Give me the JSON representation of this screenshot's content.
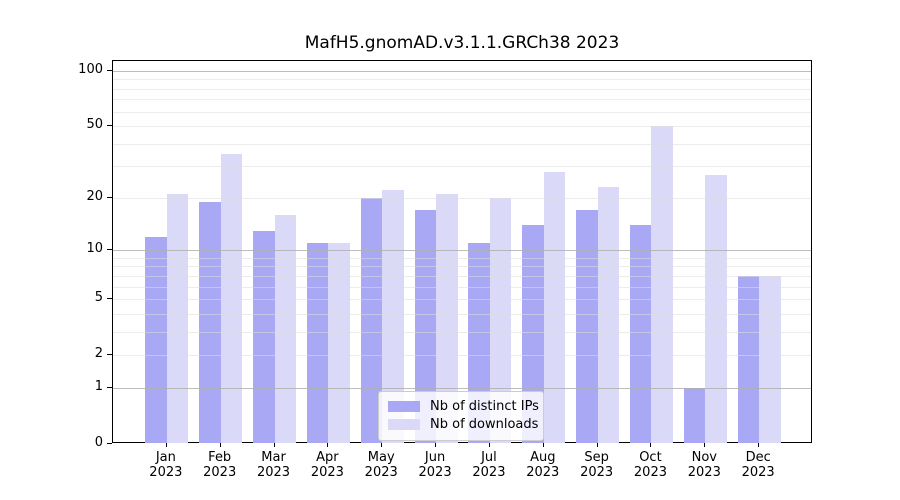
{
  "title": "MafH5.gnomAD.v3.1.1.GRCh38 2023",
  "chart_data": {
    "type": "bar",
    "title": "MafH5.gnomAD.v3.1.1.GRCh38 2023",
    "categories": [
      "Jan 2023",
      "Feb 2023",
      "Mar 2023",
      "Apr 2023",
      "May 2023",
      "Jun 2023",
      "Jul 2023",
      "Aug 2023",
      "Sep 2023",
      "Oct 2023",
      "Nov 2023",
      "Dec 2023"
    ],
    "x_tick_labels": [
      {
        "line1": "Jan",
        "line2": "2023"
      },
      {
        "line1": "Feb",
        "line2": "2023"
      },
      {
        "line1": "Mar",
        "line2": "2023"
      },
      {
        "line1": "Apr",
        "line2": "2023"
      },
      {
        "line1": "May",
        "line2": "2023"
      },
      {
        "line1": "Jun",
        "line2": "2023"
      },
      {
        "line1": "Jul",
        "line2": "2023"
      },
      {
        "line1": "Aug",
        "line2": "2023"
      },
      {
        "line1": "Sep",
        "line2": "2023"
      },
      {
        "line1": "Oct",
        "line2": "2023"
      },
      {
        "line1": "Nov",
        "line2": "2023"
      },
      {
        "line1": "Dec",
        "line2": "2023"
      }
    ],
    "series": [
      {
        "name": "Nb of distinct IPs",
        "color": "#a8a8f5",
        "values": [
          12,
          19,
          13,
          11,
          20,
          17,
          11,
          14,
          17,
          14,
          1,
          7
        ]
      },
      {
        "name": "Nb of downloads",
        "color": "#dadaf8",
        "values": [
          21,
          35,
          16,
          11,
          22,
          21,
          20,
          28,
          23,
          50,
          27,
          7
        ]
      }
    ],
    "y_axis": {
      "scale": "log1p",
      "ylim": [
        0,
        113
      ],
      "tick_values": [
        0,
        1,
        2,
        5,
        10,
        20,
        50,
        100
      ],
      "tick_labels": [
        "0",
        "1",
        "2",
        "5",
        "10",
        "20",
        "50",
        "100"
      ],
      "major_grid_values": [
        1,
        10,
        100
      ],
      "minor_grid_values": [
        2,
        3,
        4,
        5,
        6,
        7,
        8,
        9,
        20,
        30,
        40,
        50,
        60,
        70,
        80,
        90
      ],
      "grid": "on"
    },
    "legend": {
      "position": "lower center",
      "entries": [
        {
          "label": "Nb of distinct IPs",
          "color": "#a8a8f5"
        },
        {
          "label": "Nb of downloads",
          "color": "#dadaf8"
        }
      ]
    },
    "colors": {
      "bar_dark": "#a8a8f5",
      "bar_light": "#dadaf8",
      "major_grid": "#b0b0b0",
      "minor_grid": "#dcdcdc",
      "text": "#000000",
      "background": "#ffffff"
    }
  }
}
